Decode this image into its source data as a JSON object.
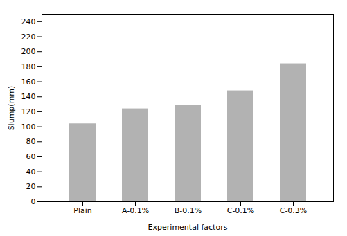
{
  "chart_data": {
    "type": "bar",
    "categories": [
      "Plain",
      "A-0.1%",
      "B-0.1%",
      "C-0.1%",
      "C-0.3%"
    ],
    "values": [
      104,
      124,
      129,
      148,
      184
    ],
    "color": "#b2b2b2",
    "xlabel": "Experimental factors",
    "ylabel": "Slump(mm)",
    "ylim": [
      0,
      250
    ],
    "yticks": [
      0,
      20,
      40,
      60,
      80,
      100,
      120,
      140,
      160,
      180,
      200,
      220,
      240
    ]
  }
}
